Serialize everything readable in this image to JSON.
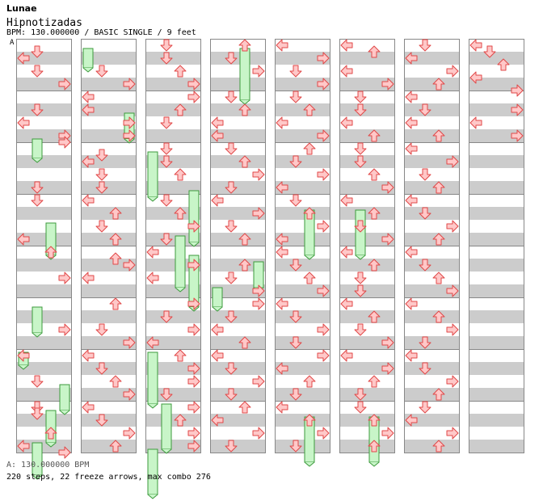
{
  "header": {
    "artist": "Lunae",
    "title": "Hipnotizadas",
    "info": "BPM: 130.000000 / BASIC SINGLE / 9 feet",
    "section_marker": "A"
  },
  "footer": {
    "bpm": "A: 130.000000 BPM",
    "stats": "220 steps, 22 freeze arrows, max combo 276"
  },
  "colors": {
    "stripe": "#cccccc",
    "arrow_fill": "#ffc8c8",
    "arrow_stroke": "#e04848",
    "freeze_fill": "#c8f5c8",
    "freeze_stroke": "#3c9a3c",
    "border": "#888888"
  },
  "chart_data": {
    "type": "step-chart",
    "lanes": [
      "left",
      "down",
      "up",
      "right"
    ],
    "columns": 8,
    "measures_per_column": 8,
    "rows_per_measure": 8,
    "notes": [
      [
        [
          1,
          1
        ],
        [
          2,
          0
        ],
        [
          4,
          1
        ],
        [
          6,
          3
        ],
        [
          10,
          1
        ],
        [
          12,
          0
        ],
        [
          14,
          3
        ],
        [
          15,
          3
        ],
        [
          22,
          1
        ],
        [
          24,
          1
        ],
        [
          30,
          0
        ],
        [
          32,
          2
        ],
        [
          36,
          3
        ],
        [
          44,
          3
        ],
        [
          48,
          0
        ],
        [
          52,
          1
        ],
        [
          56,
          1
        ],
        [
          57,
          1
        ],
        [
          60,
          2
        ],
        [
          62,
          0
        ],
        [
          63,
          3
        ]
      ],
      [
        [
          4,
          1
        ],
        [
          6,
          3
        ],
        [
          8,
          0
        ],
        [
          10,
          0
        ],
        [
          12,
          3
        ],
        [
          14,
          3
        ],
        [
          17,
          1
        ],
        [
          18,
          0
        ],
        [
          20,
          1
        ],
        [
          22,
          1
        ],
        [
          24,
          0
        ],
        [
          26,
          2
        ],
        [
          28,
          1
        ],
        [
          30,
          2
        ],
        [
          33,
          2
        ],
        [
          34,
          3
        ],
        [
          36,
          0
        ],
        [
          40,
          2
        ],
        [
          44,
          1
        ],
        [
          46,
          3
        ],
        [
          48,
          0
        ],
        [
          50,
          1
        ],
        [
          52,
          2
        ],
        [
          54,
          3
        ],
        [
          56,
          0
        ],
        [
          58,
          1
        ],
        [
          60,
          3
        ],
        [
          62,
          2
        ]
      ],
      [
        [
          0,
          1
        ],
        [
          2,
          1
        ],
        [
          4,
          2
        ],
        [
          6,
          3
        ],
        [
          8,
          3
        ],
        [
          10,
          2
        ],
        [
          12,
          1
        ],
        [
          16,
          1
        ],
        [
          18,
          1
        ],
        [
          20,
          2
        ],
        [
          24,
          1
        ],
        [
          26,
          2
        ],
        [
          28,
          3
        ],
        [
          30,
          1
        ],
        [
          32,
          0
        ],
        [
          34,
          3
        ],
        [
          36,
          0
        ],
        [
          40,
          3
        ],
        [
          42,
          1
        ],
        [
          44,
          3
        ],
        [
          46,
          0
        ],
        [
          48,
          2
        ],
        [
          50,
          3
        ],
        [
          52,
          3
        ],
        [
          54,
          1
        ],
        [
          56,
          3
        ],
        [
          58,
          2
        ],
        [
          60,
          3
        ],
        [
          62,
          3
        ]
      ],
      [
        [
          0,
          2
        ],
        [
          2,
          1
        ],
        [
          4,
          3
        ],
        [
          8,
          1
        ],
        [
          10,
          2
        ],
        [
          12,
          0
        ],
        [
          14,
          0
        ],
        [
          16,
          1
        ],
        [
          18,
          2
        ],
        [
          20,
          3
        ],
        [
          22,
          1
        ],
        [
          24,
          0
        ],
        [
          26,
          3
        ],
        [
          28,
          1
        ],
        [
          30,
          2
        ],
        [
          34,
          2
        ],
        [
          36,
          1
        ],
        [
          38,
          3
        ],
        [
          40,
          3
        ],
        [
          42,
          1
        ],
        [
          44,
          0
        ],
        [
          46,
          2
        ],
        [
          48,
          0
        ],
        [
          50,
          1
        ],
        [
          52,
          3
        ],
        [
          54,
          1
        ],
        [
          56,
          2
        ],
        [
          58,
          0
        ],
        [
          60,
          3
        ],
        [
          62,
          1
        ]
      ],
      [
        [
          0,
          0
        ],
        [
          2,
          3
        ],
        [
          4,
          1
        ],
        [
          6,
          3
        ],
        [
          8,
          1
        ],
        [
          10,
          2
        ],
        [
          12,
          0
        ],
        [
          14,
          3
        ],
        [
          16,
          2
        ],
        [
          18,
          1
        ],
        [
          20,
          3
        ],
        [
          22,
          0
        ],
        [
          24,
          1
        ],
        [
          26,
          2
        ],
        [
          28,
          3
        ],
        [
          30,
          0
        ],
        [
          32,
          0
        ],
        [
          34,
          1
        ],
        [
          36,
          2
        ],
        [
          38,
          3
        ],
        [
          40,
          0
        ],
        [
          42,
          1
        ],
        [
          44,
          3
        ],
        [
          46,
          1
        ],
        [
          48,
          3
        ],
        [
          50,
          0
        ],
        [
          52,
          2
        ],
        [
          54,
          1
        ],
        [
          56,
          0
        ],
        [
          58,
          2
        ],
        [
          60,
          3
        ],
        [
          62,
          1
        ]
      ],
      [
        [
          0,
          0
        ],
        [
          1,
          2
        ],
        [
          4,
          0
        ],
        [
          6,
          3
        ],
        [
          8,
          1
        ],
        [
          10,
          1
        ],
        [
          12,
          0
        ],
        [
          14,
          2
        ],
        [
          16,
          1
        ],
        [
          18,
          1
        ],
        [
          20,
          2
        ],
        [
          22,
          3
        ],
        [
          24,
          0
        ],
        [
          26,
          2
        ],
        [
          28,
          1
        ],
        [
          30,
          3
        ],
        [
          32,
          0
        ],
        [
          34,
          2
        ],
        [
          36,
          1
        ],
        [
          38,
          1
        ],
        [
          40,
          0
        ],
        [
          42,
          2
        ],
        [
          44,
          1
        ],
        [
          46,
          3
        ],
        [
          48,
          0
        ],
        [
          50,
          3
        ],
        [
          52,
          2
        ],
        [
          54,
          1
        ],
        [
          56,
          1
        ],
        [
          58,
          2
        ],
        [
          60,
          3
        ],
        [
          62,
          2
        ]
      ],
      [
        [
          0,
          1
        ],
        [
          2,
          0
        ],
        [
          4,
          3
        ],
        [
          6,
          2
        ],
        [
          8,
          0
        ],
        [
          10,
          1
        ],
        [
          12,
          0
        ],
        [
          14,
          2
        ],
        [
          16,
          0
        ],
        [
          18,
          3
        ],
        [
          20,
          1
        ],
        [
          22,
          2
        ],
        [
          24,
          0
        ],
        [
          26,
          1
        ],
        [
          28,
          3
        ],
        [
          30,
          2
        ],
        [
          32,
          0
        ],
        [
          34,
          1
        ],
        [
          36,
          2
        ],
        [
          38,
          3
        ],
        [
          40,
          0
        ],
        [
          42,
          2
        ],
        [
          44,
          3
        ],
        [
          46,
          1
        ],
        [
          48,
          0
        ],
        [
          50,
          1
        ],
        [
          52,
          3
        ],
        [
          54,
          2
        ],
        [
          56,
          1
        ],
        [
          58,
          0
        ],
        [
          60,
          3
        ],
        [
          62,
          2
        ]
      ],
      [
        [
          0,
          0
        ],
        [
          1,
          1
        ],
        [
          3,
          2
        ],
        [
          5,
          0
        ],
        [
          7,
          3
        ],
        [
          10,
          3
        ],
        [
          12,
          0
        ],
        [
          14,
          3
        ]
      ]
    ],
    "freezes": [
      [
        [
          15,
          1,
          3
        ],
        [
          28,
          2,
          5
        ],
        [
          41,
          1,
          4
        ],
        [
          48,
          0,
          2
        ],
        [
          53,
          3,
          4
        ],
        [
          57,
          2,
          5
        ],
        [
          62,
          1,
          5
        ]
      ],
      [
        [
          1,
          0,
          3
        ],
        [
          11,
          3,
          4
        ]
      ],
      [
        [
          17,
          0,
          7
        ],
        [
          23,
          3,
          8
        ],
        [
          30,
          2,
          8
        ],
        [
          33,
          3,
          8
        ],
        [
          48,
          0,
          8
        ],
        [
          56,
          1,
          7
        ],
        [
          63,
          0,
          7
        ]
      ],
      [
        [
          1,
          2,
          8
        ],
        [
          34,
          3,
          4
        ],
        [
          38,
          0,
          3
        ]
      ],
      [
        [
          26,
          2,
          7
        ],
        [
          58,
          2,
          7
        ]
      ],
      [
        [
          26,
          1,
          7
        ],
        [
          58,
          2,
          7
        ]
      ]
    ]
  }
}
